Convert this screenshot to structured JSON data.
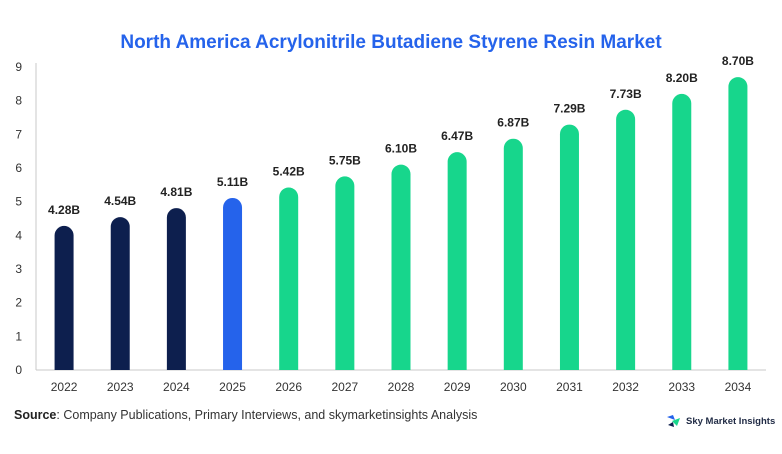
{
  "colors": {
    "title": "#2563eb",
    "historical": "#0d1f4e",
    "current": "#2563eb",
    "forecast": "#17d68c",
    "axis": "#c8c8c8",
    "tick_text": "#333333",
    "value_text": "#222222"
  },
  "chart_data": {
    "type": "bar",
    "title": "North America Acrylonitrile Butadiene Styrene Resin Market",
    "xlabel": "",
    "ylabel": "",
    "ylim": [
      0,
      9
    ],
    "yticks": [
      0,
      1,
      2,
      3,
      4,
      5,
      6,
      7,
      8,
      9
    ],
    "grid": false,
    "categories": [
      "2022",
      "2023",
      "2024",
      "2025",
      "2026",
      "2027",
      "2028",
      "2029",
      "2030",
      "2031",
      "2032",
      "2033",
      "2034"
    ],
    "values": [
      4.28,
      4.54,
      4.81,
      5.11,
      5.42,
      5.75,
      6.1,
      6.47,
      6.87,
      7.29,
      7.73,
      8.2,
      8.7
    ],
    "value_labels": [
      "4.28B",
      "4.54B",
      "4.81B",
      "5.11B",
      "5.42B",
      "5.75B",
      "6.10B",
      "6.47B",
      "6.87B",
      "7.29B",
      "7.73B",
      "8.20B",
      "8.70B"
    ],
    "bar_segments": [
      "historical",
      "historical",
      "historical",
      "current",
      "forecast",
      "forecast",
      "forecast",
      "forecast",
      "forecast",
      "forecast",
      "forecast",
      "forecast",
      "forecast"
    ]
  },
  "source": {
    "label": "Source",
    "text": ": Company Publications, Primary Interviews, and skymarketinsights Analysis"
  },
  "brand": {
    "name": "Sky Market Insights",
    "icon": "sky-market-insights-logo-icon"
  }
}
